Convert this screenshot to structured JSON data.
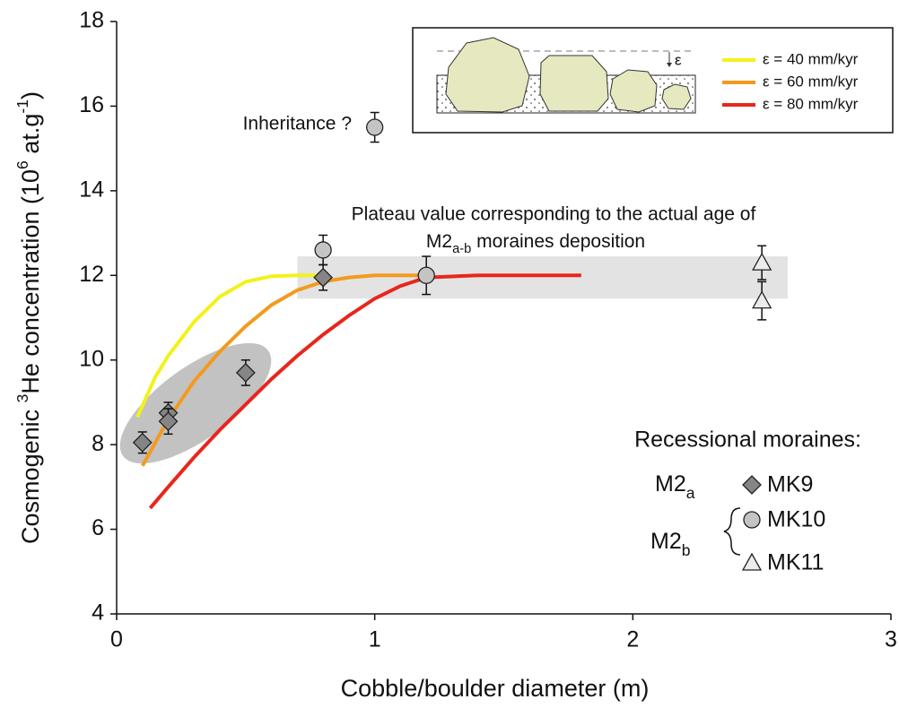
{
  "chart_data": {
    "type": "scatter",
    "xlabel": "Cobble/boulder diameter (m)",
    "ylabel_parts": [
      {
        "text": "Cosmogenic "
      },
      {
        "text": "3",
        "sup": true
      },
      {
        "text": "He concentration (10"
      },
      {
        "text": "6",
        "sup": true
      },
      {
        "text": " at.g"
      },
      {
        "text": "-1",
        "sup": true
      },
      {
        "text": ")"
      }
    ],
    "xlim": [
      0,
      3
    ],
    "xticks": [
      0,
      1,
      2,
      3
    ],
    "ylim": [
      4,
      18
    ],
    "yticks": [
      4,
      6,
      8,
      10,
      12,
      14,
      16,
      18
    ],
    "series": [
      {
        "name": "ε = 40 mm/kyr",
        "color": "#f2f21a",
        "x": [
          0.08,
          0.15,
          0.2,
          0.3,
          0.4,
          0.5,
          0.6,
          0.7,
          0.8
        ],
        "values": [
          8.65,
          9.6,
          10.1,
          10.9,
          11.5,
          11.85,
          11.98,
          12,
          12
        ]
      },
      {
        "name": "ε = 60 mm/kyr",
        "color": "#f39a1e",
        "x": [
          0.1,
          0.2,
          0.3,
          0.4,
          0.5,
          0.6,
          0.7,
          0.8,
          0.9,
          1.0,
          1.1,
          1.2
        ],
        "values": [
          7.5,
          8.6,
          9.5,
          10.2,
          10.8,
          11.3,
          11.65,
          11.85,
          11.95,
          12,
          12,
          12
        ]
      },
      {
        "name": "ε = 80 mm/kyr",
        "color": "#e8261c",
        "x": [
          0.13,
          0.2,
          0.3,
          0.4,
          0.5,
          0.6,
          0.7,
          0.8,
          0.9,
          1.0,
          1.1,
          1.2,
          1.4,
          1.6,
          1.8
        ],
        "values": [
          6.5,
          7.0,
          7.7,
          8.35,
          8.95,
          9.55,
          10.1,
          10.6,
          11.05,
          11.45,
          11.75,
          11.95,
          12,
          12,
          12
        ]
      },
      {
        "name": "MK9",
        "marker": "diamond",
        "color": "#858585",
        "x": [
          0.1,
          0.2,
          0.2,
          0.5,
          0.8
        ],
        "values": [
          8.05,
          8.75,
          8.55,
          9.7,
          11.95
        ],
        "errors": [
          0.25,
          0.25,
          0.3,
          0.3,
          0.3
        ]
      },
      {
        "name": "MK10",
        "marker": "circle",
        "color": "#c4c4c4",
        "x": [
          0.8,
          1.0,
          1.2
        ],
        "values": [
          12.6,
          15.5,
          12.0
        ],
        "errors": [
          0.35,
          0.35,
          0.45
        ]
      },
      {
        "name": "MK11",
        "marker": "triangle",
        "color": "#ececec",
        "x": [
          2.5,
          2.5
        ],
        "values": [
          12.3,
          11.4
        ],
        "errors": [
          0.4,
          0.45
        ]
      }
    ],
    "plateau_band": {
      "xlim": [
        0.7,
        2.6
      ],
      "ylim": [
        11.45,
        12.45
      ]
    },
    "annotations": {
      "inheritance": "Inheritance ?",
      "plateau_line1": "Plateau value corresponding to the actual age of",
      "plateau_line2_parts": [
        {
          "text": "M2"
        },
        {
          "text": "a-b",
          "sub": true
        },
        {
          "text": " moraines deposition"
        }
      ]
    },
    "inset_label": "ε",
    "legend_title": "Recessional moraines:",
    "moraine_groups": [
      [
        {
          "text": "M2"
        },
        {
          "text": "a",
          "sub": true
        }
      ],
      [
        {
          "text": "M2"
        },
        {
          "text": "b",
          "sub": true
        }
      ]
    ]
  }
}
